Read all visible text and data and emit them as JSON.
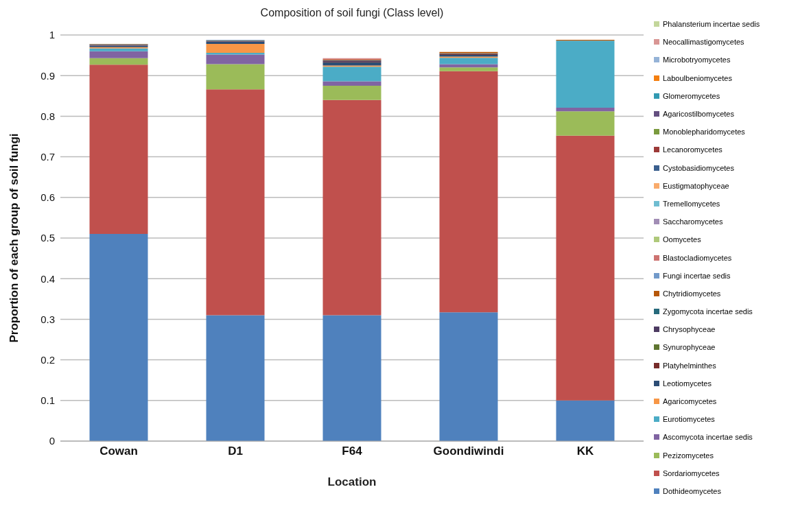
{
  "chart_data": {
    "type": "bar",
    "stacked": true,
    "title": "Composition of soil fungi (Class level)",
    "xlabel": "Location",
    "ylabel": "Proportion of each group of soil fungi",
    "categories": [
      "Cowan",
      "D1",
      "F64",
      "Goondiwindi",
      "KK"
    ],
    "ylim": [
      0,
      1
    ],
    "yticks": [
      0,
      0.1,
      0.2,
      0.3,
      0.4,
      0.5,
      0.6,
      0.7,
      0.8,
      0.9,
      1
    ],
    "grid": "y",
    "legend": "right",
    "series": [
      {
        "name": "Dothideomycetes",
        "color": "#4f81bd",
        "values": [
          0.51,
          0.31,
          0.31,
          0.317,
          0.1
        ]
      },
      {
        "name": "Sordariomycetes",
        "color": "#c0504d",
        "values": [
          0.417,
          0.556,
          0.53,
          0.594,
          0.652
        ]
      },
      {
        "name": "Pezizomycetes",
        "color": "#9bbb59",
        "values": [
          0.016,
          0.062,
          0.035,
          0.009,
          0.06
        ]
      },
      {
        "name": "Ascomycota incertae sedis",
        "color": "#8064a2",
        "values": [
          0.017,
          0.024,
          0.011,
          0.008,
          0.009
        ]
      },
      {
        "name": "Eurotiomycetes",
        "color": "#4bacc6",
        "values": [
          0.007,
          0.004,
          0.036,
          0.016,
          0.165
        ]
      },
      {
        "name": "Agaricomycetes",
        "color": "#f79646",
        "values": [
          0.003,
          0.022,
          0.003,
          0.003,
          null
        ]
      },
      {
        "name": "Leotiomycetes",
        "color": "#2c4d75",
        "values": [
          0.004,
          0.005,
          0.008,
          0.004,
          0
        ]
      },
      {
        "name": "Platyhelminthes",
        "color": "#772c2a",
        "values": [
          0.001,
          0.001,
          0.001,
          0.002,
          0
        ]
      },
      {
        "name": "Synurophyceae",
        "color": "#5f7530",
        "values": [
          0,
          0,
          0,
          0,
          0
        ]
      },
      {
        "name": "Chrysophyceae",
        "color": "#4d3b62",
        "values": [
          0.001,
          0.001,
          0.003,
          0.001,
          0
        ]
      },
      {
        "name": "Zygomycota incertae sedis",
        "color": "#276a7c",
        "values": [
          0.001,
          0.001,
          0.001,
          0.001,
          0
        ]
      },
      {
        "name": "Chytridiomycetes",
        "color": "#b65708",
        "values": [
          0.001,
          0.001,
          0.001,
          0.003,
          0.002
        ]
      },
      {
        "name": "Fungi incertae sedis",
        "color": "#729aca",
        "values": [
          0,
          0.001,
          null,
          0,
          0
        ]
      },
      {
        "name": "Blastocladiomycetes",
        "color": "#cd7371",
        "values": [
          0,
          0,
          0.002,
          0,
          0
        ]
      },
      {
        "name": "Oomycetes",
        "color": "#afc97a",
        "values": [
          0,
          0,
          0,
          0,
          0
        ]
      },
      {
        "name": "Saccharomycetes",
        "color": "#a18db5",
        "values": [
          0,
          0,
          0,
          0,
          0
        ]
      },
      {
        "name": "Tremellomycetes",
        "color": "#6fbdd1",
        "values": [
          0,
          0,
          0,
          0,
          0
        ]
      },
      {
        "name": "Eustigmatophyceae",
        "color": "#f9ab6b",
        "values": [
          0,
          0,
          0,
          0,
          0
        ]
      },
      {
        "name": "Cystobasidiomycetes",
        "color": "#3a5f8e",
        "values": [
          0,
          0,
          0,
          0,
          0
        ]
      },
      {
        "name": "Lecanoromycetes",
        "color": "#9c3a38",
        "values": [
          0,
          0,
          0,
          0,
          0
        ]
      },
      {
        "name": "Monoblepharidomycetes",
        "color": "#7a9a3d",
        "values": [
          0,
          0,
          0,
          0,
          0
        ]
      },
      {
        "name": "Agaricostilbomycetes",
        "color": "#644f80",
        "values": [
          0,
          0,
          0,
          0,
          0
        ]
      },
      {
        "name": "Glomeromycetes",
        "color": "#329ab2",
        "values": [
          0,
          0,
          0,
          0,
          0
        ]
      },
      {
        "name": "Laboulbeniomycetes",
        "color": "#f47f10",
        "values": [
          0,
          0,
          0,
          0,
          0
        ]
      },
      {
        "name": "Microbotryomycetes",
        "color": "#95b3d7",
        "values": [
          0,
          0,
          0,
          0,
          0
        ]
      },
      {
        "name": "Neocallimastigomycetes",
        "color": "#d99694",
        "values": [
          0,
          0,
          0.002,
          0,
          0
        ]
      },
      {
        "name": "Phalansterium incertae sedis",
        "color": "#c3d69b",
        "values": [
          0,
          0,
          0,
          0,
          0
        ]
      }
    ]
  }
}
